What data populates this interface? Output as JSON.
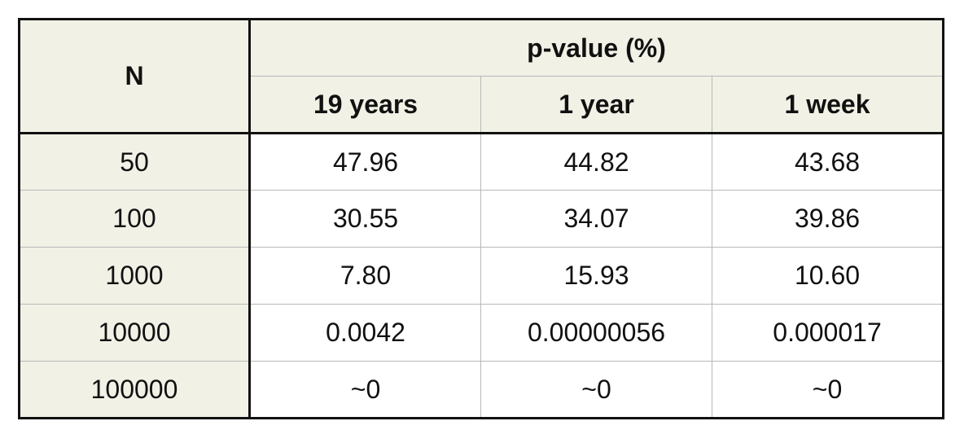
{
  "table": {
    "n_header": "N",
    "group_header": "p-value (%)",
    "columns": [
      "19 years",
      "1 year",
      "1 week"
    ],
    "rows": [
      {
        "n": "50",
        "values": [
          "47.96",
          "44.82",
          "43.68"
        ]
      },
      {
        "n": "100",
        "values": [
          "30.55",
          "34.07",
          "39.86"
        ]
      },
      {
        "n": "1000",
        "values": [
          "7.80",
          "15.93",
          "10.60"
        ]
      },
      {
        "n": "10000",
        "values": [
          "0.0042",
          "0.00000056",
          "0.000017"
        ]
      },
      {
        "n": "100000",
        "values": [
          "~0",
          "~0",
          "~0"
        ]
      }
    ]
  },
  "colors": {
    "header_background": "#f2f1e6",
    "cell_background": "#ffffff",
    "outer_border": "#111111",
    "inner_border": "#b8b8b8"
  }
}
